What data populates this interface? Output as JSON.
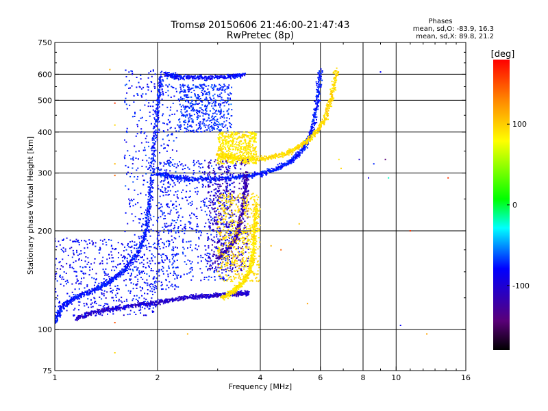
{
  "chart_data": {
    "type": "scatter",
    "title": "Tromsø 20150606 21:46:00-21:47:43",
    "subtitle": "RwPretec (8p)",
    "xlabel": "Frequency [MHz]",
    "ylabel": "Stationary phase Virtual Height [km]",
    "xscale": "log",
    "yscale": "log",
    "xlim": [
      1,
      16
    ],
    "ylim": [
      75,
      750
    ],
    "xticks": [
      1,
      2,
      4,
      6,
      8,
      10,
      16
    ],
    "xtick_labels": [
      "1",
      "2",
      "4",
      "6",
      "8",
      "10",
      "16"
    ],
    "x_gridlines": [
      2,
      4,
      6,
      8,
      10
    ],
    "yticks": [
      75,
      100,
      200,
      300,
      400,
      500,
      600,
      750
    ],
    "ytick_labels": [
      "75",
      "100",
      "200",
      "300",
      "400",
      "500",
      "600",
      "750"
    ],
    "y_gridlines": [
      100,
      200,
      300,
      400,
      500,
      600
    ],
    "grid": true,
    "stats": {
      "heading": "Phases",
      "line1": "mean, sd,O: -83.9, 16.3",
      "line2": "mean, sd,X:  89.8, 21.2"
    },
    "colorbar": {
      "label": "[deg]",
      "range": [
        -180,
        180
      ],
      "ticks": [
        100,
        0,
        -100
      ],
      "tick_labels": [
        "100",
        "0",
        "-100"
      ],
      "colormap": "rainbow (black-purple-blue-cyan-green-yellow-red)"
    },
    "traces": [
      {
        "polarity": "O",
        "phase": -95,
        "points": [
          [
            1.0,
            105
          ],
          [
            1.05,
            118
          ],
          [
            1.15,
            125
          ],
          [
            1.3,
            132
          ],
          [
            1.45,
            140
          ],
          [
            1.6,
            152
          ],
          [
            1.75,
            170
          ],
          [
            1.85,
            200
          ],
          [
            1.9,
            250
          ],
          [
            1.95,
            350
          ],
          [
            2.0,
            480
          ],
          [
            2.05,
            600
          ]
        ]
      },
      {
        "polarity": "O",
        "phase": -115,
        "points": [
          [
            1.15,
            108
          ],
          [
            1.3,
            113
          ],
          [
            1.5,
            116
          ],
          [
            1.75,
            119
          ],
          [
            2.0,
            121
          ],
          [
            2.3,
            124
          ],
          [
            2.6,
            126
          ],
          [
            2.9,
            127
          ],
          [
            3.2,
            128
          ],
          [
            3.5,
            129
          ],
          [
            3.7,
            129
          ]
        ]
      },
      {
        "polarity": "O",
        "phase": -95,
        "points": [
          [
            2.0,
            300
          ],
          [
            2.2,
            293
          ],
          [
            2.5,
            288
          ],
          [
            3.0,
            288
          ],
          [
            3.5,
            292
          ],
          [
            4.0,
            298
          ],
          [
            4.5,
            310
          ],
          [
            5.0,
            330
          ],
          [
            5.4,
            360
          ],
          [
            5.7,
            410
          ],
          [
            5.9,
            500
          ],
          [
            6.0,
            620
          ]
        ]
      },
      {
        "polarity": "O",
        "phase": -100,
        "points": [
          [
            2.1,
            600
          ],
          [
            2.3,
            590
          ],
          [
            2.7,
            585
          ],
          [
            3.2,
            590
          ],
          [
            3.6,
            600
          ]
        ]
      },
      {
        "polarity": "O",
        "phase": -125,
        "points": [
          [
            3.0,
            165
          ],
          [
            3.2,
            175
          ],
          [
            3.4,
            190
          ],
          [
            3.5,
            215
          ],
          [
            3.6,
            260
          ],
          [
            3.65,
            300
          ]
        ]
      },
      {
        "polarity": "X",
        "phase": 90,
        "points": [
          [
            3.1,
            125
          ],
          [
            3.3,
            130
          ],
          [
            3.5,
            137
          ],
          [
            3.7,
            148
          ],
          [
            3.8,
            165
          ],
          [
            3.85,
            200
          ],
          [
            3.9,
            240
          ]
        ]
      },
      {
        "polarity": "X",
        "phase": 95,
        "points": [
          [
            3.0,
            340
          ],
          [
            3.3,
            335
          ],
          [
            3.7,
            330
          ],
          [
            4.2,
            333
          ],
          [
            4.8,
            345
          ],
          [
            5.3,
            365
          ],
          [
            5.8,
            395
          ],
          [
            6.2,
            440
          ],
          [
            6.5,
            520
          ],
          [
            6.7,
            620
          ]
        ]
      }
    ],
    "clouds": [
      {
        "phase": -100,
        "x": [
          1.0,
          2.0
        ],
        "y": [
          110,
          190
        ]
      },
      {
        "phase": -95,
        "x": [
          1.6,
          2.3
        ],
        "y": [
          130,
          620
        ]
      },
      {
        "phase": -95,
        "x": [
          2.0,
          3.3
        ],
        "y": [
          140,
          330
        ]
      },
      {
        "phase": -120,
        "x": [
          2.8,
          3.7
        ],
        "y": [
          150,
          330
        ]
      },
      {
        "phase": 95,
        "x": [
          3.0,
          4.0
        ],
        "y": [
          140,
          260
        ]
      },
      {
        "phase": 90,
        "x": [
          3.0,
          3.9
        ],
        "y": [
          320,
          400
        ]
      },
      {
        "phase": -90,
        "x": [
          2.3,
          3.3
        ],
        "y": [
          400,
          560
        ]
      }
    ],
    "scattered": [
      {
        "x": 1.45,
        "y": 620,
        "phase": 110
      },
      {
        "x": 1.5,
        "y": 490,
        "phase": 160
      },
      {
        "x": 1.5,
        "y": 420,
        "phase": 100
      },
      {
        "x": 1.5,
        "y": 320,
        "phase": 110
      },
      {
        "x": 1.5,
        "y": 295,
        "phase": 140
      },
      {
        "x": 1.5,
        "y": 85,
        "phase": 100
      },
      {
        "x": 1.5,
        "y": 105,
        "phase": 150
      },
      {
        "x": 2.45,
        "y": 97,
        "phase": 110
      },
      {
        "x": 4.3,
        "y": 180,
        "phase": 110
      },
      {
        "x": 4.6,
        "y": 175,
        "phase": 140
      },
      {
        "x": 5.2,
        "y": 210,
        "phase": 100
      },
      {
        "x": 5.5,
        "y": 120,
        "phase": 120
      },
      {
        "x": 6.8,
        "y": 330,
        "phase": 90
      },
      {
        "x": 6.9,
        "y": 310,
        "phase": 100
      },
      {
        "x": 7.8,
        "y": 330,
        "phase": -110
      },
      {
        "x": 8.3,
        "y": 290,
        "phase": -110
      },
      {
        "x": 8.6,
        "y": 320,
        "phase": -90
      },
      {
        "x": 9.0,
        "y": 610,
        "phase": -100
      },
      {
        "x": 9.3,
        "y": 330,
        "phase": -140
      },
      {
        "x": 9.5,
        "y": 290,
        "phase": -30
      },
      {
        "x": 10.3,
        "y": 103,
        "phase": -100
      },
      {
        "x": 11.0,
        "y": 200,
        "phase": 160
      },
      {
        "x": 12.3,
        "y": 97,
        "phase": 120
      },
      {
        "x": 14.2,
        "y": 290,
        "phase": 160
      }
    ]
  }
}
